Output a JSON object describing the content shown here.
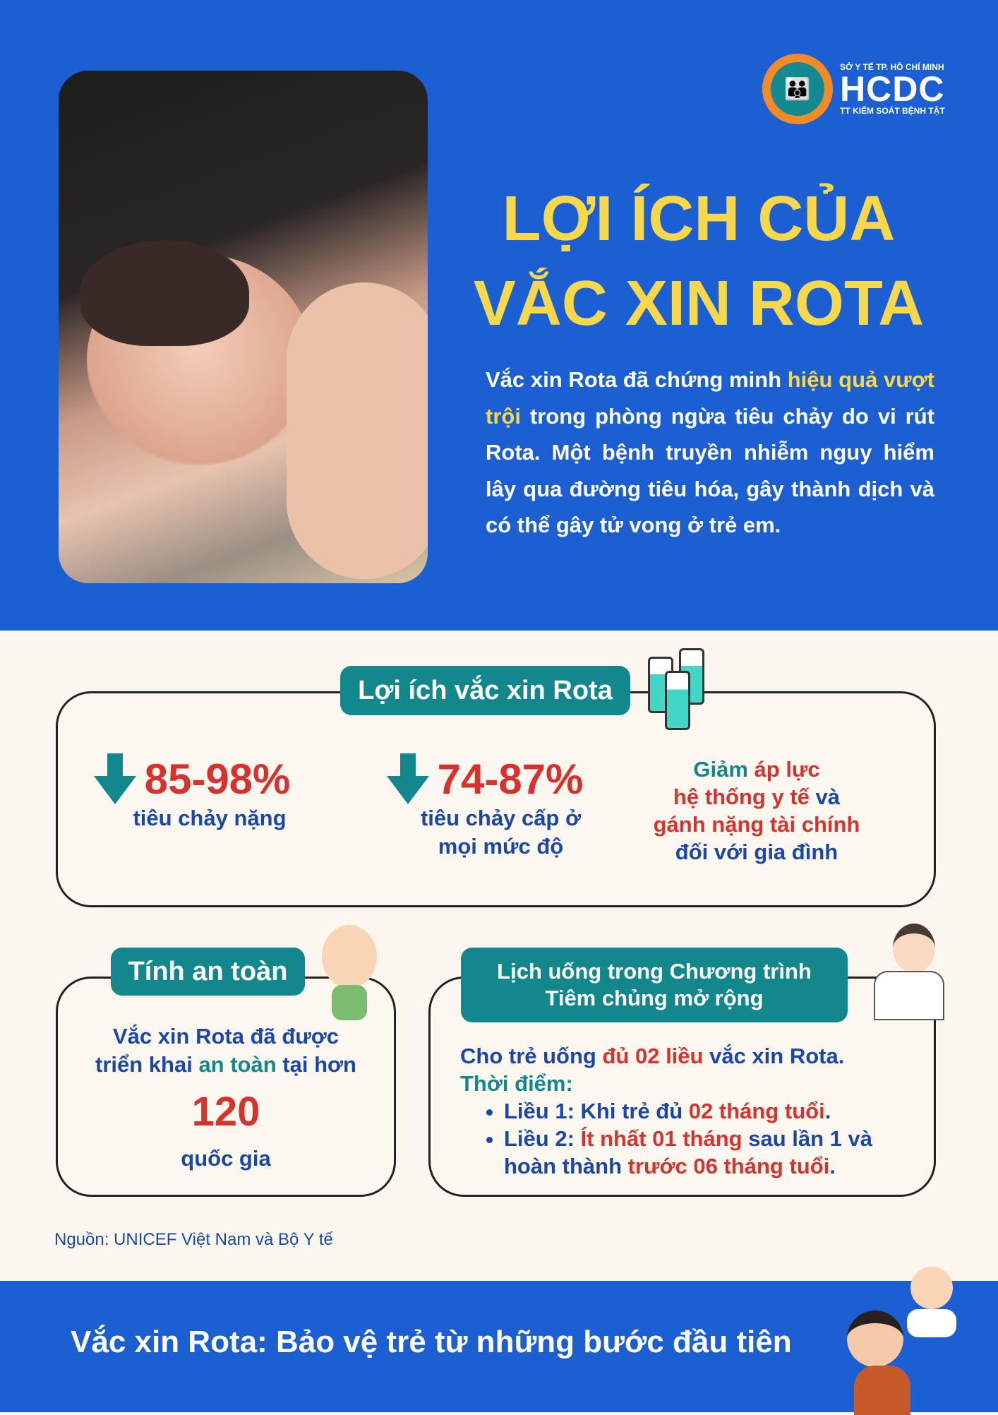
{
  "logo": {
    "line1": "SỞ Y TẾ TP. HỒ CHÍ MINH",
    "name": "HCDC",
    "line3": "TT KIỂM SOÁT BỆNH TẬT"
  },
  "title": {
    "line1": "LỢI ÍCH CỦA",
    "line2": "VẮC XIN ROTA"
  },
  "intro": {
    "seg1": "Vắc xin Rota đã chứng minh ",
    "highlight": "hiệu quả vượt trội",
    "seg2": " trong phòng ngừa tiêu chảy do vi rút Rota. Một bệnh truyền nhiễm nguy hiểm lây qua đường tiêu hóa, gây thành dịch và có thể gây tử vong ở trẻ em."
  },
  "benefits": {
    "label": "Lợi ích vắc xin Rota",
    "stats": [
      {
        "value": "85-98%",
        "line1": "tiêu chảy nặng"
      },
      {
        "value": "74-87%",
        "line1": "tiêu chảy cấp ở",
        "line2": "mọi mức độ"
      }
    ],
    "third": {
      "a": "Giảm ",
      "b": "áp lực",
      "c": "hệ thống y tế",
      "d": " và",
      "e": "gánh nặng tài chính",
      "f": "đối với gia đình"
    }
  },
  "safety": {
    "label": "Tính an toàn",
    "l1": "Vắc xin Rota đã được",
    "l2a": "triển khai ",
    "l2b": "an toàn",
    "l2c": " tại hơn",
    "number": "120",
    "unit": "quốc gia"
  },
  "schedule": {
    "label1": "Lịch uống trong Chương trình",
    "label2": "Tiêm chủng mở rộng",
    "i1": "Cho trẻ uống ",
    "i2": "đủ 02 liều",
    "i3": " vắc xin Rota.",
    "timing": "Thời điểm:",
    "d1a": "Liều 1: Khi trẻ đủ ",
    "d1b": "02 tháng tuổi",
    "d1c": ".",
    "d2a": "Liều 2: ",
    "d2b": "Ít nhất 01 tháng",
    "d2c": " sau lần 1 và hoàn thành ",
    "d2d": "trước 06 tháng tuổi",
    "d2e": "."
  },
  "source": "Nguồn: UNICEF Việt Nam và Bộ Y tế",
  "footer": "Vắc xin Rota: Bảo vệ trẻ từ những bước đầu tiên",
  "colors": {
    "blue_bg": "#1b5fd3",
    "yellow": "#f6d84a",
    "teal": "#12878c",
    "red": "#d8322e",
    "dark_blue": "#1a47a8",
    "cream": "#fdf8ef"
  }
}
